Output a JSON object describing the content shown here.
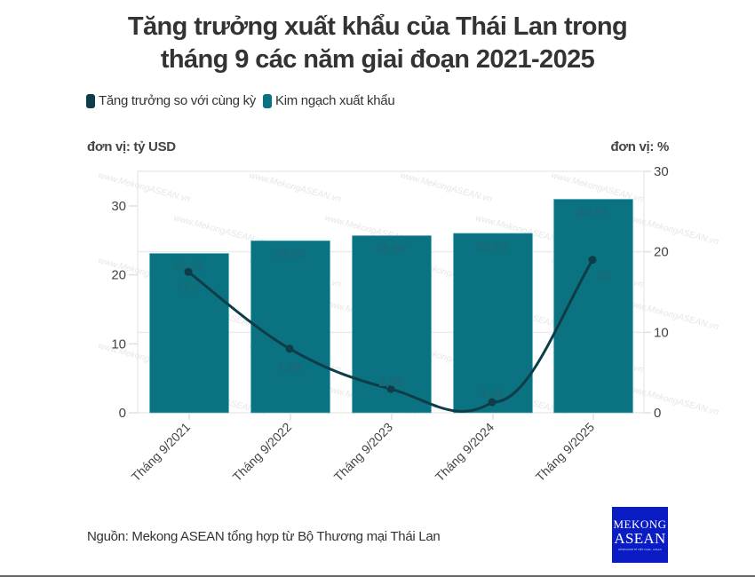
{
  "title": {
    "line1": "Tăng trưởng xuất khẩu của Thái Lan trong",
    "line2": "tháng 9 các năm giai đoạn 2021-2025"
  },
  "legend": [
    {
      "label": "Tăng trưởng so với cùng kỳ",
      "color": "#0d3d48"
    },
    {
      "label": "Kim ngạch xuất khẩu",
      "color": "#0a7281"
    }
  ],
  "units": {
    "left": "đơn vị: tỷ USD",
    "right": "đơn vị: %"
  },
  "source": "Nguồn: Mekong ASEAN tổng hợp từ Bộ Thương mại Thái Lan",
  "logo": {
    "line1": "MEKONG",
    "line2": "ASEAN",
    "line3": "KÊNH KINH TẾ VIỆT NAM - ASEAN",
    "color": "#0a1cc4"
  },
  "watermark": "www.MekongASEAN.vn",
  "colors": {
    "bar": "#0a7281",
    "line": "#0d3d48",
    "bar_label": "#1b6976",
    "grid": "#ebebeb",
    "axis_text": "#444444"
  },
  "chart_data": {
    "type": "bar+line",
    "title": "Tăng trưởng xuất khẩu của Thái Lan trong tháng 9 các năm giai đoạn 2021-2025",
    "categories": [
      "Tháng 9/2021",
      "Tháng 9/2022",
      "Tháng 9/2023",
      "Tháng 9/2024",
      "Tháng 9/2025"
    ],
    "series": [
      {
        "name": "Kim ngạch xuất khẩu",
        "type": "bar",
        "axis": "left",
        "values": [
          23.11,
          24.95,
          25.69,
          26.03,
          30.97
        ],
        "labels": [
          "23,11",
          "24,95",
          "25,69",
          "26,03",
          "30,97"
        ]
      },
      {
        "name": "Tăng trưởng so với cùng kỳ",
        "type": "line",
        "axis": "right",
        "values": [
          17.5,
          7.96,
          2.96,
          1.32,
          19
        ],
        "labels": [
          "17,5",
          "7,96",
          "2,96",
          "1,32",
          "19"
        ]
      }
    ],
    "ylabel_left": "đơn vị: tỷ USD",
    "ylabel_right": "đơn vị: %",
    "ylim_left": [
      0,
      35
    ],
    "yticks_left": [
      0,
      10,
      20,
      30
    ],
    "ylim_right": [
      0,
      30
    ],
    "yticks_right": [
      0,
      10,
      20,
      30
    ],
    "xlabel": "",
    "grid": true,
    "legend_position": "top-left"
  }
}
